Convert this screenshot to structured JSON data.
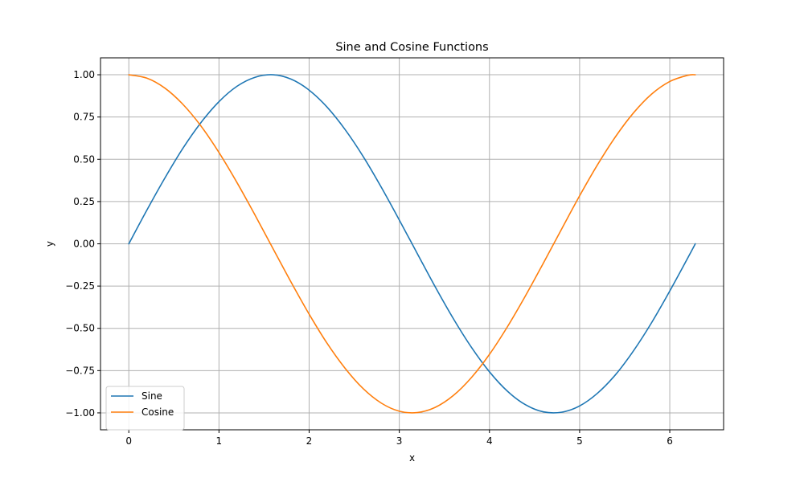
{
  "chart_data": {
    "type": "line",
    "title": "Sine and Cosine Functions",
    "xlabel": "x",
    "ylabel": "y",
    "xlim": [
      -0.314,
      6.597
    ],
    "ylim": [
      -1.1,
      1.1
    ],
    "x_ticks": [
      0,
      1,
      2,
      3,
      4,
      5,
      6
    ],
    "x_tick_labels": [
      "0",
      "1",
      "2",
      "3",
      "4",
      "5",
      "6"
    ],
    "y_ticks": [
      1.0,
      0.75,
      0.5,
      0.25,
      0.0,
      -0.25,
      -0.5,
      -0.75,
      -1.0
    ],
    "y_tick_labels": [
      "1.00",
      "0.75",
      "0.50",
      "0.25",
      "0.00",
      "−0.25",
      "−0.50",
      "−0.75",
      "−1.00"
    ],
    "grid": true,
    "legend_position": "lower-left",
    "x": [
      0,
      0.2,
      0.4,
      0.6,
      0.8,
      1.0,
      1.2,
      1.4,
      1.6,
      1.8,
      2.0,
      2.2,
      2.4,
      2.6,
      2.8,
      3.0,
      3.2,
      3.4,
      3.6,
      3.8,
      4.0,
      4.2,
      4.4,
      4.6,
      4.8,
      5.0,
      5.2,
      5.4,
      5.6,
      5.8,
      6.0,
      6.2,
      6.283
    ],
    "series": [
      {
        "name": "Sine",
        "color": "#1f77b4",
        "values": [
          0.0,
          0.199,
          0.389,
          0.565,
          0.717,
          0.841,
          0.932,
          0.985,
          1.0,
          0.974,
          0.909,
          0.808,
          0.675,
          0.516,
          0.335,
          0.141,
          -0.058,
          -0.256,
          -0.443,
          -0.612,
          -0.757,
          -0.872,
          -0.952,
          -0.994,
          -0.996,
          -0.959,
          -0.883,
          -0.773,
          -0.631,
          -0.465,
          -0.279,
          -0.083,
          0.0
        ]
      },
      {
        "name": "Cosine",
        "color": "#ff7f0e",
        "values": [
          1.0,
          0.98,
          0.921,
          0.825,
          0.697,
          0.54,
          0.362,
          0.17,
          -0.029,
          -0.227,
          -0.416,
          -0.589,
          -0.737,
          -0.857,
          -0.942,
          -0.99,
          -0.998,
          -0.967,
          -0.897,
          -0.791,
          -0.654,
          -0.49,
          -0.307,
          -0.112,
          0.087,
          0.284,
          0.469,
          0.635,
          0.776,
          0.886,
          0.96,
          0.997,
          1.0
        ]
      }
    ]
  }
}
